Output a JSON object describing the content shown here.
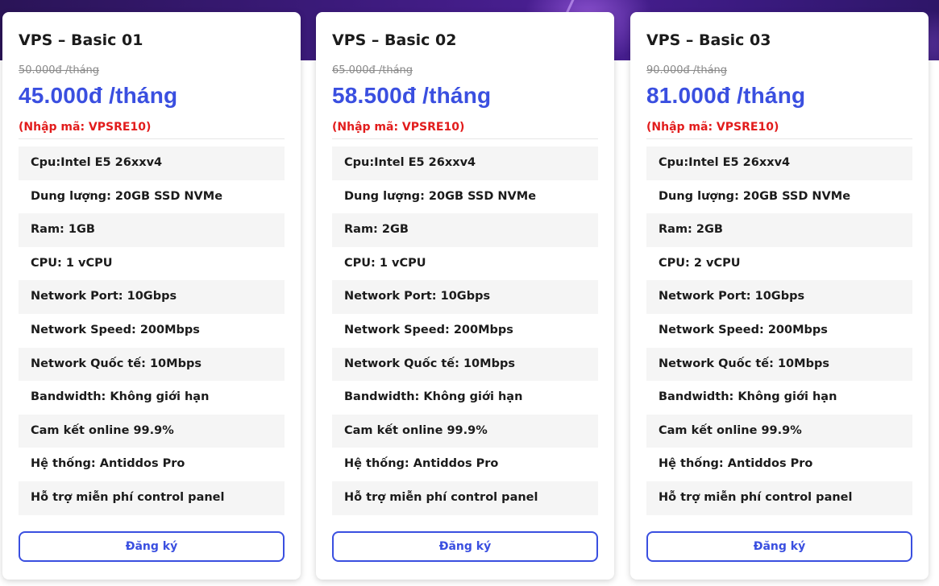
{
  "plans": [
    {
      "title": "VPS – Basic 01",
      "old_price": "50.000đ /tháng",
      "price": "45.000đ /tháng",
      "promo": "(Nhập mã: VPSRE10)",
      "features": [
        "Cpu:Intel E5 26xxv4",
        "Dung lượng: 20GB SSD NVMe",
        "Ram: 1GB",
        "CPU: 1 vCPU",
        "Network Port: 10Gbps",
        "Network Speed: 200Mbps",
        "Network Quốc tế: 10Mbps",
        "Bandwidth: Không giới hạn",
        "Cam kết online 99.9%",
        "Hệ thống: Antiddos Pro",
        "Hỗ trợ miễn phí control panel"
      ],
      "button": "Đăng ký"
    },
    {
      "title": "VPS – Basic 02",
      "old_price": "65.000đ /tháng",
      "price": "58.500đ /tháng",
      "promo": "(Nhập mã: VPSRE10)",
      "features": [
        "Cpu:Intel E5 26xxv4",
        "Dung lượng: 20GB SSD NVMe",
        "Ram: 2GB",
        "CPU: 1 vCPU",
        "Network Port: 10Gbps",
        "Network Speed: 200Mbps",
        "Network Quốc tế: 10Mbps",
        "Bandwidth: Không giới hạn",
        "Cam kết online 99.9%",
        "Hệ thống: Antiddos Pro",
        "Hỗ trợ miễn phí control panel"
      ],
      "button": "Đăng ký"
    },
    {
      "title": "VPS – Basic 03",
      "old_price": "90.000đ /tháng",
      "price": "81.000đ /tháng",
      "promo": "(Nhập mã: VPSRE10)",
      "features": [
        "Cpu:Intel E5 26xxv4",
        "Dung lượng: 20GB SSD NVMe",
        "Ram: 2GB",
        "CPU: 2 vCPU",
        "Network Port: 10Gbps",
        "Network Speed: 200Mbps",
        "Network Quốc tế: 10Mbps",
        "Bandwidth: Không giới hạn",
        "Cam kết online 99.9%",
        "Hệ thống: Antiddos Pro",
        "Hỗ trợ miễn phí control panel"
      ],
      "button": "Đăng ký"
    }
  ],
  "colors": {
    "accent": "#3a4fe0",
    "promo": "#e21c1c",
    "hero": "#3b1a7a"
  }
}
